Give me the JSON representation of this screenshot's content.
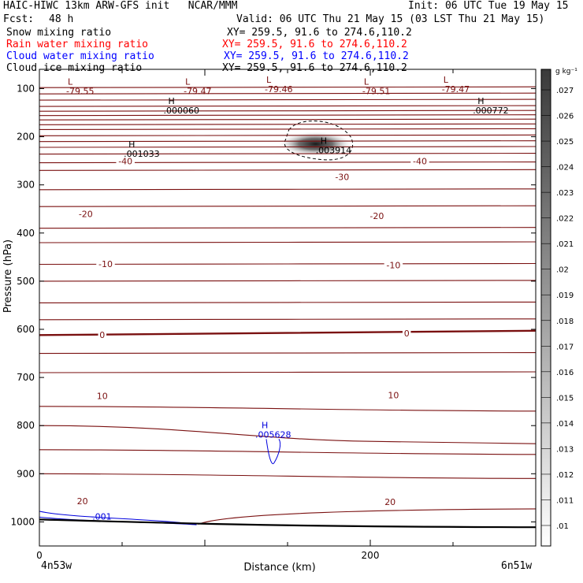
{
  "header": {
    "title": "HAIC-HIWC 13km ARW-GFS init   NCAR/MMM",
    "init": "Init: 06 UTC Tue 19 May 15",
    "fcst_label": "Fcst:",
    "fcst_value": "48 h",
    "valid": "Valid: 06 UTC Thu 21 May 15 (03 LST Thu 21 May 15)",
    "fields": [
      {
        "name": "Snow mixing ratio",
        "xy": "XY= 259.5, 91.6 to 274.6,110.2",
        "color": "#000000"
      },
      {
        "name": "Rain water mixing ratio",
        "xy": "XY= 259.5, 91.6 to 274.6,110.2",
        "color": "#ff0000"
      },
      {
        "name": "Cloud water mixing ratio",
        "xy": "XY= 259.5, 91.6 to 274.6,110.2",
        "color": "#0000ff"
      },
      {
        "name": "Cloud ice mixing ratio",
        "xy": "XY= 259.5, 91.6 to 274.6,110.2",
        "color": "#000000"
      }
    ]
  },
  "chart_data": {
    "type": "cross-section",
    "xlabel": "Distance (km)",
    "ylabel": "Pressure (hPa)",
    "x_range": [
      0,
      300
    ],
    "x_ticks": [
      0,
      200
    ],
    "x_end_labels": [
      "4n53w",
      "6n51w"
    ],
    "y_range": [
      1050,
      60
    ],
    "y_ticks": [
      100,
      200,
      300,
      400,
      500,
      600,
      700,
      800,
      900,
      1000
    ],
    "temperature_contours": {
      "color": "#7a1010",
      "labels": [
        {
          "text": "-40",
          "x": 52,
          "p": 252
        },
        {
          "text": "-40",
          "x": 230,
          "p": 252
        },
        {
          "text": "-30",
          "x": 183,
          "p": 285
        },
        {
          "text": "-20",
          "x": 28,
          "p": 362
        },
        {
          "text": "-20",
          "x": 204,
          "p": 366
        },
        {
          "text": "-10",
          "x": 40,
          "p": 466
        },
        {
          "text": "-10",
          "x": 214,
          "p": 468
        },
        {
          "text": "0",
          "x": 38,
          "p": 613
        },
        {
          "text": "0",
          "x": 222,
          "p": 610
        },
        {
          "text": "10",
          "x": 38,
          "p": 740
        },
        {
          "text": "10",
          "x": 214,
          "p": 738
        },
        {
          "text": "20",
          "x": 26,
          "p": 958
        },
        {
          "text": "20",
          "x": 212,
          "p": 960
        }
      ],
      "extrema": [
        {
          "text": "L",
          "value": "-79.55",
          "x": 20,
          "p": 92
        },
        {
          "text": "L",
          "value": "-79.47",
          "x": 91,
          "p": 92
        },
        {
          "text": "L",
          "value": "-79.46",
          "x": 140,
          "p": 88
        },
        {
          "text": "L",
          "value": "-79.51",
          "x": 199,
          "p": 92
        },
        {
          "text": "L",
          "value": "-79.47",
          "x": 247,
          "p": 88
        }
      ]
    },
    "cloud_ice_maxima": [
      {
        "text": "H",
        "value": ".000060",
        "x": 75,
        "p": 132
      },
      {
        "text": "H",
        "value": ".000772",
        "x": 262,
        "p": 132
      },
      {
        "text": "H",
        "value": ".001033",
        "x": 51,
        "p": 222
      },
      {
        "text": "H",
        "value": ".003914",
        "x": 167,
        "p": 215
      }
    ],
    "cloud_water": [
      {
        "text": "H",
        "value": ".005628",
        "x": 140,
        "p": 805
      },
      {
        "text": "",
        "value": ".001",
        "x": 32,
        "p": 995
      }
    ],
    "colorbar": {
      "unit": "g kg⁻¹",
      "labels": [
        ".01",
        ".011",
        ".012",
        ".013",
        ".014",
        ".015",
        ".016",
        ".017",
        ".018",
        ".019",
        ".02",
        ".021",
        ".022",
        ".023",
        ".024",
        ".025",
        ".026",
        ".027"
      ]
    }
  }
}
